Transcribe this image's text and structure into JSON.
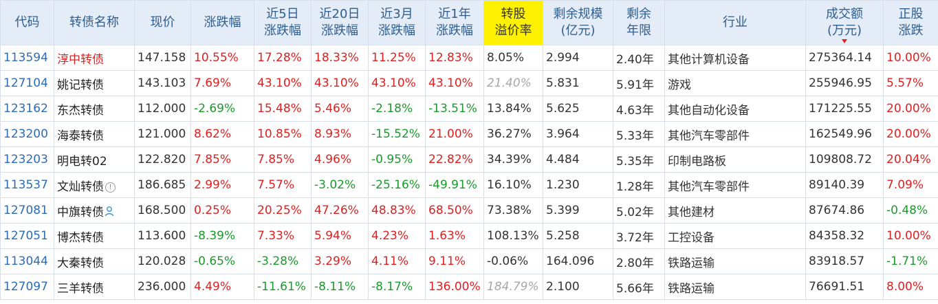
{
  "headers": {
    "code": "代码",
    "name": "转债名称",
    "price": "现价",
    "change": "涨跌幅",
    "d5_l1": "近5日",
    "d5_l2": "涨跌幅",
    "d20_l1": "近20日",
    "d20_l2": "涨跌幅",
    "m3_l1": "近3月",
    "m3_l2": "涨跌幅",
    "y1_l1": "近1年",
    "y1_l2": "涨跌幅",
    "prem_l1": "转股",
    "prem_l2": "溢价率",
    "scale_l1": "剩余规模",
    "scale_l2": "(亿元)",
    "years_l1": "剩余",
    "years_l2": "年限",
    "industry": "行业",
    "volume_l1": "成交额",
    "volume_l2": "(万元)",
    "stock_l1": "正股",
    "stock_l2": "涨跌"
  },
  "rows": [
    {
      "code": "113594",
      "name": "淳中转债",
      "price": "147.158",
      "change": "10.55%",
      "d5": "17.28%",
      "d20": "18.33%",
      "m3": "11.25%",
      "y1": "12.83%",
      "premium": "8.05%",
      "scale": "2.994",
      "years": "2.40年",
      "industry": "其他计算机设备",
      "volume": "275364.14",
      "stock": "10.00%"
    },
    {
      "code": "127104",
      "name": "姚记转债",
      "price": "143.103",
      "change": "7.69%",
      "d5": "43.10%",
      "d20": "43.10%",
      "m3": "43.10%",
      "y1": "43.10%",
      "premium": "21.40%",
      "scale": "5.831",
      "years": "5.91年",
      "industry": "游戏",
      "volume": "255946.95",
      "stock": "5.57%"
    },
    {
      "code": "123162",
      "name": "东杰转债",
      "price": "112.000",
      "change": "-2.69%",
      "d5": "15.48%",
      "d20": "5.46%",
      "m3": "-2.18%",
      "y1": "-13.51%",
      "premium": "13.84%",
      "scale": "5.625",
      "years": "4.63年",
      "industry": "其他自动化设备",
      "volume": "171225.55",
      "stock": "20.00%"
    },
    {
      "code": "123200",
      "name": "海泰转债",
      "price": "121.000",
      "change": "8.62%",
      "d5": "10.85%",
      "d20": "8.93%",
      "m3": "-15.52%",
      "y1": "21.00%",
      "premium": "36.27%",
      "scale": "3.964",
      "years": "5.33年",
      "industry": "其他汽车零部件",
      "volume": "162549.96",
      "stock": "20.00%"
    },
    {
      "code": "123203",
      "name": "明电转02",
      "price": "122.820",
      "change": "7.85%",
      "d5": "7.85%",
      "d20": "4.96%",
      "m3": "-0.95%",
      "y1": "22.82%",
      "premium": "34.39%",
      "scale": "4.484",
      "years": "5.35年",
      "industry": "印制电路板",
      "volume": "109808.72",
      "stock": "20.04%"
    },
    {
      "code": "113537",
      "name": "文灿转债",
      "price": "186.685",
      "change": "2.99%",
      "d5": "7.57%",
      "d20": "-3.02%",
      "m3": "-25.16%",
      "y1": "-49.91%",
      "premium": "16.10%",
      "scale": "1.230",
      "years": "1.28年",
      "industry": "其他汽车零部件",
      "volume": "89140.39",
      "stock": "7.09%"
    },
    {
      "code": "127081",
      "name": "中旗转债",
      "price": "168.500",
      "change": "0.25%",
      "d5": "20.25%",
      "d20": "47.26%",
      "m3": "48.83%",
      "y1": "68.50%",
      "premium": "73.38%",
      "scale": "5.399",
      "years": "5.02年",
      "industry": "其他建材",
      "volume": "87674.86",
      "stock": "-0.48%"
    },
    {
      "code": "127051",
      "name": "博杰转债",
      "price": "113.600",
      "change": "-8.39%",
      "d5": "7.33%",
      "d20": "5.94%",
      "m3": "4.23%",
      "y1": "1.63%",
      "premium": "108.13%",
      "scale": "5.258",
      "years": "3.72年",
      "industry": "工控设备",
      "volume": "84358.32",
      "stock": "10.00%"
    },
    {
      "code": "113044",
      "name": "大秦转债",
      "price": "120.028",
      "change": "-0.65%",
      "d5": "-3.28%",
      "d20": "3.29%",
      "m3": "4.11%",
      "y1": "9.11%",
      "premium": "-0.06%",
      "scale": "164.096",
      "years": "2.80年",
      "industry": "铁路运输",
      "volume": "83918.57",
      "stock": "-1.71%"
    },
    {
      "code": "127097",
      "name": "三羊转债",
      "price": "236.000",
      "change": "4.49%",
      "d5": "-11.61%",
      "d20": "-8.11%",
      "m3": "-8.17%",
      "y1": "136.00%",
      "premium": "184.79%",
      "scale": "2.100",
      "years": "5.66年",
      "industry": "铁路运输",
      "volume": "76691.51",
      "stock": "8.00%"
    }
  ],
  "colors": {
    "header_bg": "#e4ecf7",
    "header_text": "#2f5d8c",
    "highlight_header": "#fff200",
    "positive": "#e02020",
    "negative": "#1a9a2a",
    "code_link": "#2a6cb7",
    "muted_premium": "#a8a8a8"
  }
}
